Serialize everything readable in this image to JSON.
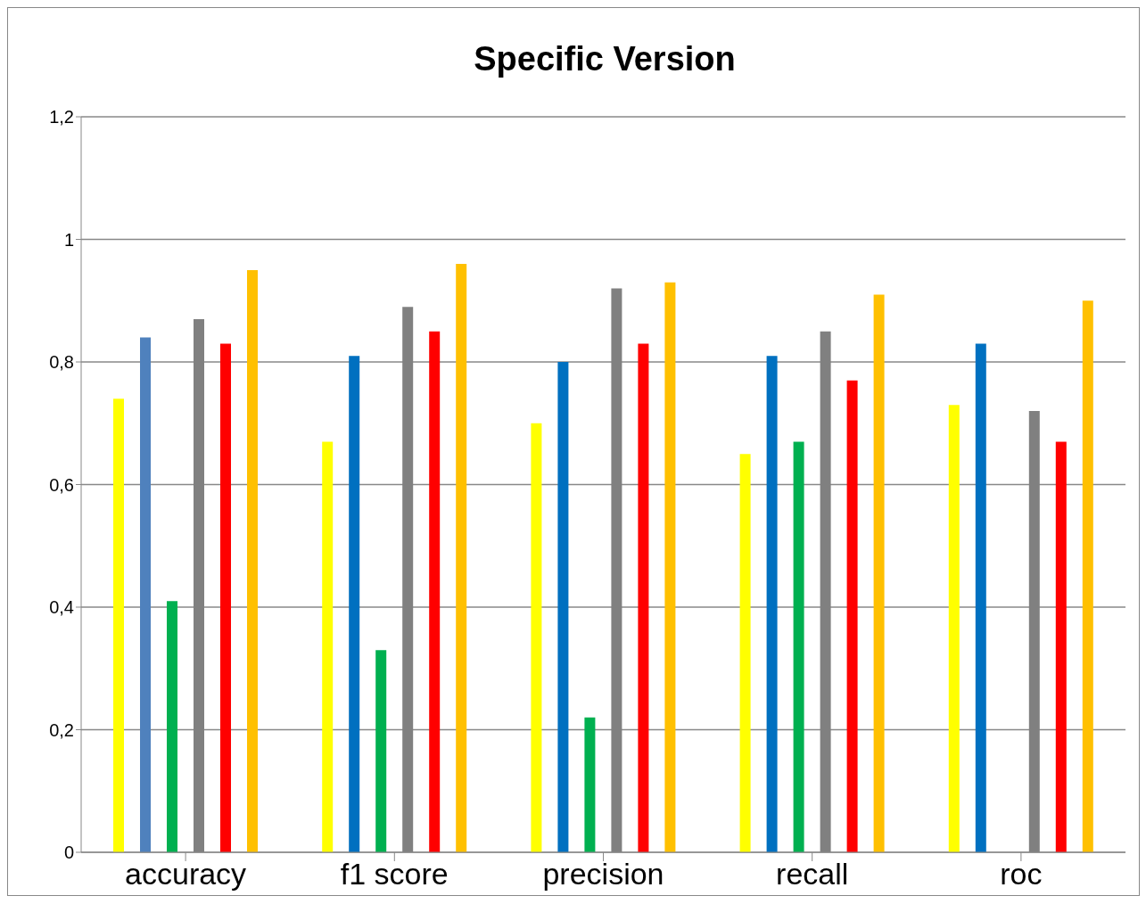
{
  "chart_data": {
    "type": "bar",
    "title": "Specific Version",
    "categories": [
      "accuracy",
      "f1 score",
      "precision",
      "recall",
      "roc"
    ],
    "series": [
      {
        "color": "#ffff00",
        "values": [
          0.74,
          0.67,
          0.7,
          0.65,
          0.73
        ]
      },
      {
        "color": "#0070c0",
        "colors": [
          "#4f81bd",
          "#0070c0",
          "#0070c0",
          "#0070c0",
          "#0070c0"
        ],
        "values": [
          0.84,
          0.81,
          0.8,
          0.81,
          0.83
        ]
      },
      {
        "color": "#00b050",
        "values": [
          0.41,
          0.33,
          0.22,
          0.67,
          null
        ]
      },
      {
        "color": "#808080",
        "values": [
          0.87,
          0.89,
          0.92,
          0.85,
          0.72
        ]
      },
      {
        "color": "#ff0000",
        "values": [
          0.83,
          0.85,
          0.83,
          0.77,
          0.67
        ]
      },
      {
        "color": "#ffc000",
        "values": [
          0.95,
          0.96,
          0.93,
          0.91,
          0.9
        ]
      }
    ],
    "ylim": [
      0,
      1.2
    ],
    "yticks": [
      0,
      {
        "value": 0.2,
        "label": "0,2"
      },
      {
        "value": 0.4,
        "label": "0,4"
      },
      {
        "value": 0.6,
        "label": "0,6"
      },
      {
        "value": 0.8,
        "label": "0,8"
      },
      1,
      {
        "value": 1.2,
        "label": "1,2"
      }
    ],
    "grid": "y",
    "legend": false
  }
}
